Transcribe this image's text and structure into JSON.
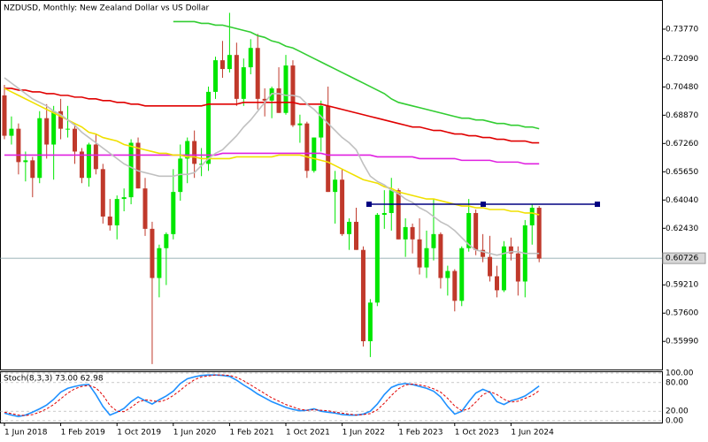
{
  "chart_data": {
    "type": "candlestick",
    "title": "NZDUSD, Monthly:  New Zealand Dollar vs US Dollar",
    "categories": [
      "1 Jun 2018",
      null,
      null,
      null,
      null,
      null,
      null,
      null,
      "1 Feb 2019",
      null,
      null,
      null,
      null,
      null,
      null,
      null,
      "1 Oct 2019",
      null,
      null,
      null,
      null,
      null,
      null,
      null,
      "1 Jun 2020",
      null,
      null,
      null,
      null,
      null,
      null,
      null,
      "1 Feb 2021",
      null,
      null,
      null,
      null,
      null,
      null,
      null,
      "1 Oct 2021",
      null,
      null,
      null,
      null,
      null,
      null,
      null,
      "1 Jun 2022",
      null,
      null,
      null,
      null,
      null,
      null,
      null,
      "1 Feb 2023",
      null,
      null,
      null,
      null,
      null,
      null,
      null,
      "1 Oct 2023",
      null,
      null,
      null,
      null,
      null,
      null,
      null,
      "1 Jun 2024",
      null,
      null,
      null,
      null
    ],
    "open": [
      0.7,
      0.677,
      0.681,
      0.662,
      0.663,
      0.653,
      0.687,
      0.672,
      0.691,
      0.681,
      0.681,
      0.668,
      0.653,
      0.672,
      0.658,
      0.631,
      0.626,
      0.641,
      0.642,
      0.673,
      0.647,
      0.624,
      0.596,
      0.613,
      0.621,
      0.645,
      0.664,
      0.674,
      0.661,
      0.661,
      0.702,
      0.72,
      0.715,
      0.723,
      0.698,
      0.716,
      0.727,
      0.698,
      0.697,
      0.704,
      0.69,
      0.717,
      0.683,
      0.684,
      0.657,
      0.676,
      0.694,
      0.645,
      0.652,
      0.621,
      0.628,
      0.612,
      0.56,
      0.582,
      0.632,
      0.633,
      0.646,
      0.618,
      0.625,
      0.618,
      0.602,
      0.613,
      0.621,
      0.596,
      0.6,
      0.583,
      0.613,
      0.633,
      0.612,
      0.608,
      0.597,
      0.589,
      0.614,
      0.61,
      0.594,
      0.626,
      0.636
    ],
    "high": [
      0.706,
      0.688,
      0.684,
      0.668,
      0.665,
      0.691,
      0.695,
      0.694,
      0.698,
      0.694,
      0.684,
      0.67,
      0.673,
      0.678,
      0.661,
      0.641,
      0.643,
      0.647,
      0.675,
      0.676,
      0.653,
      0.628,
      0.615,
      0.622,
      0.658,
      0.672,
      0.676,
      0.68,
      0.67,
      0.705,
      0.722,
      0.731,
      0.747,
      0.73,
      0.721,
      0.732,
      0.735,
      0.704,
      0.705,
      0.716,
      0.723,
      0.72,
      0.689,
      0.685,
      0.676,
      0.697,
      0.705,
      0.657,
      0.658,
      0.63,
      0.636,
      0.614,
      0.584,
      0.633,
      0.646,
      0.653,
      0.647,
      0.63,
      0.627,
      0.63,
      0.623,
      0.641,
      0.622,
      0.603,
      0.601,
      0.614,
      0.641,
      0.635,
      0.621,
      0.62,
      0.603,
      0.617,
      0.619,
      0.614,
      0.629,
      0.638,
      0.637
    ],
    "low": [
      0.675,
      0.672,
      0.655,
      0.651,
      0.642,
      0.65,
      0.664,
      0.652,
      0.675,
      0.676,
      0.661,
      0.65,
      0.648,
      0.655,
      0.627,
      0.623,
      0.618,
      0.634,
      0.638,
      0.647,
      0.62,
      0.547,
      0.585,
      0.592,
      0.618,
      0.64,
      0.65,
      0.653,
      0.654,
      0.657,
      0.698,
      0.71,
      0.713,
      0.694,
      0.694,
      0.712,
      0.692,
      0.688,
      0.687,
      0.69,
      0.689,
      0.682,
      0.673,
      0.653,
      0.656,
      0.668,
      0.645,
      0.627,
      0.62,
      0.612,
      0.612,
      0.557,
      0.551,
      0.58,
      0.624,
      0.623,
      0.618,
      0.608,
      0.61,
      0.598,
      0.596,
      0.606,
      0.59,
      0.586,
      0.577,
      0.58,
      0.611,
      0.609,
      0.605,
      0.594,
      0.585,
      0.588,
      0.606,
      0.586,
      0.585,
      0.615,
      0.605
    ],
    "close": [
      0.677,
      0.681,
      0.662,
      0.663,
      0.653,
      0.687,
      0.672,
      0.691,
      0.681,
      0.681,
      0.668,
      0.653,
      0.672,
      0.658,
      0.631,
      0.626,
      0.641,
      0.642,
      0.673,
      0.647,
      0.624,
      0.596,
      0.613,
      0.621,
      0.645,
      0.664,
      0.674,
      0.661,
      0.661,
      0.702,
      0.72,
      0.715,
      0.723,
      0.698,
      0.716,
      0.727,
      0.698,
      0.697,
      0.704,
      0.69,
      0.717,
      0.683,
      0.684,
      0.657,
      0.676,
      0.694,
      0.645,
      0.652,
      0.621,
      0.628,
      0.612,
      0.56,
      0.582,
      0.632,
      0.633,
      0.646,
      0.618,
      0.625,
      0.618,
      0.602,
      0.613,
      0.621,
      0.596,
      0.6,
      0.583,
      0.613,
      0.633,
      0.612,
      0.608,
      0.597,
      0.589,
      0.614,
      0.61,
      0.594,
      0.626,
      0.636,
      0.607
    ],
    "up_color": "#00e600",
    "down_color": "#c0392b",
    "series": [
      {
        "color": "#32cd32",
        "values": [
          null,
          null,
          null,
          null,
          null,
          null,
          null,
          null,
          null,
          null,
          null,
          null,
          null,
          null,
          null,
          null,
          null,
          null,
          null,
          null,
          null,
          null,
          null,
          null,
          0.742,
          0.742,
          0.742,
          0.742,
          0.741,
          0.741,
          0.74,
          0.74,
          0.739,
          0.738,
          0.737,
          0.736,
          0.734,
          0.733,
          0.731,
          0.73,
          0.728,
          0.727,
          0.725,
          0.723,
          0.721,
          0.719,
          0.717,
          0.715,
          0.713,
          0.711,
          0.709,
          0.707,
          0.705,
          0.703,
          0.701,
          0.698,
          0.696,
          0.695,
          0.694,
          0.693,
          0.692,
          0.691,
          0.69,
          0.689,
          0.688,
          0.687,
          0.687,
          0.686,
          0.686,
          0.685,
          0.684,
          0.684,
          0.683,
          0.683,
          0.682,
          0.682,
          0.681
        ]
      },
      {
        "color": "#e00000",
        "values": [
          0.704,
          0.704,
          0.703,
          0.703,
          0.702,
          0.702,
          0.701,
          0.701,
          0.7,
          0.7,
          0.699,
          0.699,
          0.698,
          0.698,
          0.697,
          0.697,
          0.696,
          0.696,
          0.695,
          0.695,
          0.694,
          0.694,
          0.694,
          0.694,
          0.694,
          0.694,
          0.694,
          0.694,
          0.694,
          0.695,
          0.695,
          0.695,
          0.695,
          0.695,
          0.696,
          0.696,
          0.696,
          0.696,
          0.696,
          0.696,
          0.696,
          0.696,
          0.695,
          0.695,
          0.695,
          0.695,
          0.694,
          0.693,
          0.692,
          0.691,
          0.69,
          0.689,
          0.688,
          0.687,
          0.686,
          0.685,
          0.684,
          0.683,
          0.682,
          0.682,
          0.681,
          0.68,
          0.68,
          0.679,
          0.678,
          0.678,
          0.677,
          0.677,
          0.676,
          0.676,
          0.675,
          0.675,
          0.674,
          0.674,
          0.674,
          0.673,
          0.673
        ]
      },
      {
        "color": "#e020e0",
        "values": [
          0.666,
          0.666,
          0.666,
          0.666,
          0.666,
          0.666,
          0.666,
          0.666,
          0.666,
          0.666,
          0.666,
          0.666,
          0.666,
          0.666,
          0.666,
          0.666,
          0.666,
          0.666,
          0.666,
          0.666,
          0.666,
          0.666,
          0.666,
          0.666,
          0.666,
          0.666,
          0.666,
          0.666,
          0.666,
          0.666,
          0.666,
          0.667,
          0.667,
          0.667,
          0.667,
          0.667,
          0.667,
          0.667,
          0.667,
          0.667,
          0.667,
          0.667,
          0.667,
          0.667,
          0.667,
          0.667,
          0.666,
          0.666,
          0.666,
          0.666,
          0.666,
          0.666,
          0.666,
          0.665,
          0.665,
          0.665,
          0.665,
          0.665,
          0.665,
          0.664,
          0.664,
          0.664,
          0.664,
          0.664,
          0.664,
          0.663,
          0.663,
          0.663,
          0.663,
          0.663,
          0.662,
          0.662,
          0.662,
          0.662,
          0.661,
          0.661,
          0.661
        ]
      },
      {
        "color": "#f0e000",
        "values": [
          0.704,
          0.702,
          0.7,
          0.698,
          0.696,
          0.694,
          0.692,
          0.69,
          0.688,
          0.686,
          0.684,
          0.682,
          0.679,
          0.678,
          0.676,
          0.675,
          0.674,
          0.672,
          0.671,
          0.67,
          0.669,
          0.668,
          0.667,
          0.667,
          0.666,
          0.666,
          0.665,
          0.665,
          0.664,
          0.664,
          0.664,
          0.664,
          0.664,
          0.665,
          0.665,
          0.665,
          0.665,
          0.665,
          0.665,
          0.666,
          0.666,
          0.666,
          0.666,
          0.665,
          0.664,
          0.663,
          0.662,
          0.66,
          0.658,
          0.656,
          0.654,
          0.652,
          0.651,
          0.65,
          0.648,
          0.647,
          0.645,
          0.644,
          0.643,
          0.642,
          0.641,
          0.641,
          0.64,
          0.639,
          0.638,
          0.637,
          0.637,
          0.636,
          0.636,
          0.635,
          0.635,
          0.635,
          0.634,
          0.634,
          0.633,
          0.633,
          0.632
        ]
      },
      {
        "color": "#c0c0c0",
        "values": [
          0.71,
          0.707,
          0.704,
          0.701,
          0.698,
          0.696,
          0.694,
          0.691,
          0.689,
          0.686,
          0.683,
          0.679,
          0.676,
          0.673,
          0.67,
          0.667,
          0.664,
          0.661,
          0.659,
          0.657,
          0.656,
          0.655,
          0.654,
          0.654,
          0.654,
          0.655,
          0.655,
          0.656,
          0.66,
          0.664,
          0.667,
          0.669,
          0.673,
          0.677,
          0.682,
          0.686,
          0.691,
          0.696,
          0.701,
          0.701,
          0.7,
          0.7,
          0.699,
          0.695,
          0.692,
          0.688,
          0.684,
          0.68,
          0.676,
          0.673,
          0.669,
          0.661,
          0.654,
          0.651,
          0.649,
          0.646,
          0.644,
          0.641,
          0.639,
          0.636,
          0.634,
          0.631,
          0.628,
          0.626,
          0.623,
          0.619,
          0.615,
          0.612,
          0.611,
          0.61,
          0.609,
          0.61,
          0.611,
          0.611,
          0.61,
          0.61,
          0.61
        ]
      }
    ],
    "ylim": [
      0.5439,
      0.7543
    ],
    "yticks": [
      {
        "value": 0.7377,
        "label": "0.73770"
      },
      {
        "value": 0.7209,
        "label": "0.72090"
      },
      {
        "value": 0.7048,
        "label": "0.70480"
      },
      {
        "value": 0.6887,
        "label": "0.68870"
      },
      {
        "value": 0.6726,
        "label": "0.67260"
      },
      {
        "value": 0.6565,
        "label": "0.65650"
      },
      {
        "value": 0.6404,
        "label": "0.64040"
      },
      {
        "value": 0.6243,
        "label": "0.62430"
      },
      {
        "value": 0.5921,
        "label": "0.59210"
      },
      {
        "value": 0.576,
        "label": "0.57600"
      },
      {
        "value": 0.5599,
        "label": "0.55990"
      }
    ],
    "current_price": {
      "value": 0.60726,
      "label": "0.60726"
    },
    "trendline": {
      "value": 0.638,
      "color": "#000080"
    },
    "stochastic": {
      "title": "Stoch(8,3,3) 73.00 62.98",
      "ylim": [
        0,
        100
      ],
      "yticks": [
        {
          "value": 100,
          "label": "100.00"
        },
        {
          "value": 80,
          "label": "80.00"
        },
        {
          "value": 20,
          "label": "20.00"
        },
        {
          "value": 0,
          "label": "0.00"
        }
      ],
      "series": [
        {
          "color": "#1e90ff",
          "values": [
            16,
            12,
            9,
            12,
            18,
            25,
            33,
            45,
            60,
            68,
            72,
            75,
            76,
            55,
            30,
            12,
            18,
            26,
            40,
            50,
            42,
            35,
            44,
            52,
            62,
            78,
            88,
            92,
            95,
            96,
            96,
            95,
            93,
            85,
            75,
            66,
            56,
            48,
            40,
            34,
            28,
            24,
            21,
            22,
            25,
            20,
            18,
            16,
            13,
            12,
            12,
            14,
            20,
            35,
            55,
            70,
            76,
            78,
            76,
            72,
            68,
            62,
            50,
            30,
            14,
            20,
            40,
            58,
            66,
            60,
            40,
            34,
            42,
            46,
            52,
            62,
            73
          ]
        },
        {
          "color": "#e00000",
          "dashed": true,
          "values": [
            18,
            15,
            12,
            11,
            13,
            18,
            25,
            34,
            46,
            58,
            67,
            72,
            74,
            69,
            54,
            32,
            20,
            19,
            28,
            39,
            44,
            42,
            40,
            44,
            53,
            64,
            76,
            86,
            92,
            94,
            96,
            96,
            95,
            91,
            84,
            75,
            66,
            57,
            48,
            41,
            34,
            29,
            24,
            22,
            23,
            22,
            21,
            18,
            16,
            14,
            12,
            13,
            15,
            23,
            37,
            53,
            67,
            75,
            77,
            75,
            72,
            67,
            60,
            47,
            31,
            21,
            25,
            39,
            55,
            61,
            55,
            45,
            39,
            41,
            47,
            53,
            62.98
          ]
        }
      ]
    }
  }
}
